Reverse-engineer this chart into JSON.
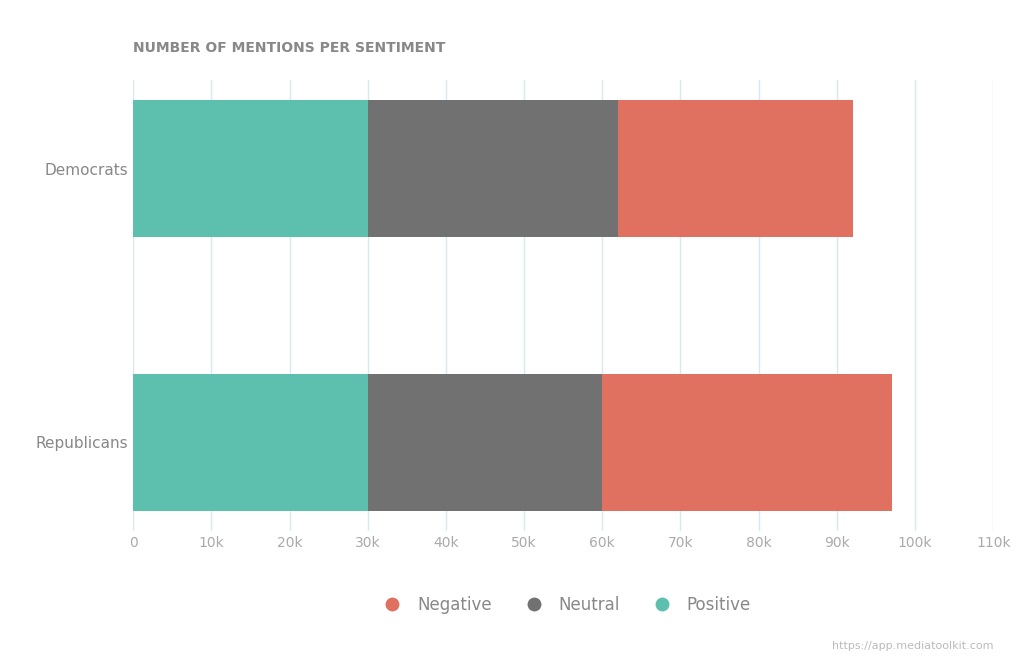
{
  "categories": [
    "Republicans",
    "Democrats"
  ],
  "positive": [
    30000,
    30000
  ],
  "neutral": [
    30000,
    32000
  ],
  "negative": [
    37000,
    30000
  ],
  "colors": {
    "positive": "#5dbfad",
    "neutral": "#717171",
    "negative": "#e07060"
  },
  "title": "NUMBER OF MENTIONS PER SENTIMENT",
  "title_fontsize": 10,
  "title_color": "#888888",
  "xlim": [
    0,
    110000
  ],
  "tick_color": "#aaaaaa",
  "label_color": "#888888",
  "background_color": "#ffffff",
  "grid_color": "#d8e8f0",
  "watermark": "https://app.mediatoolkit.com"
}
